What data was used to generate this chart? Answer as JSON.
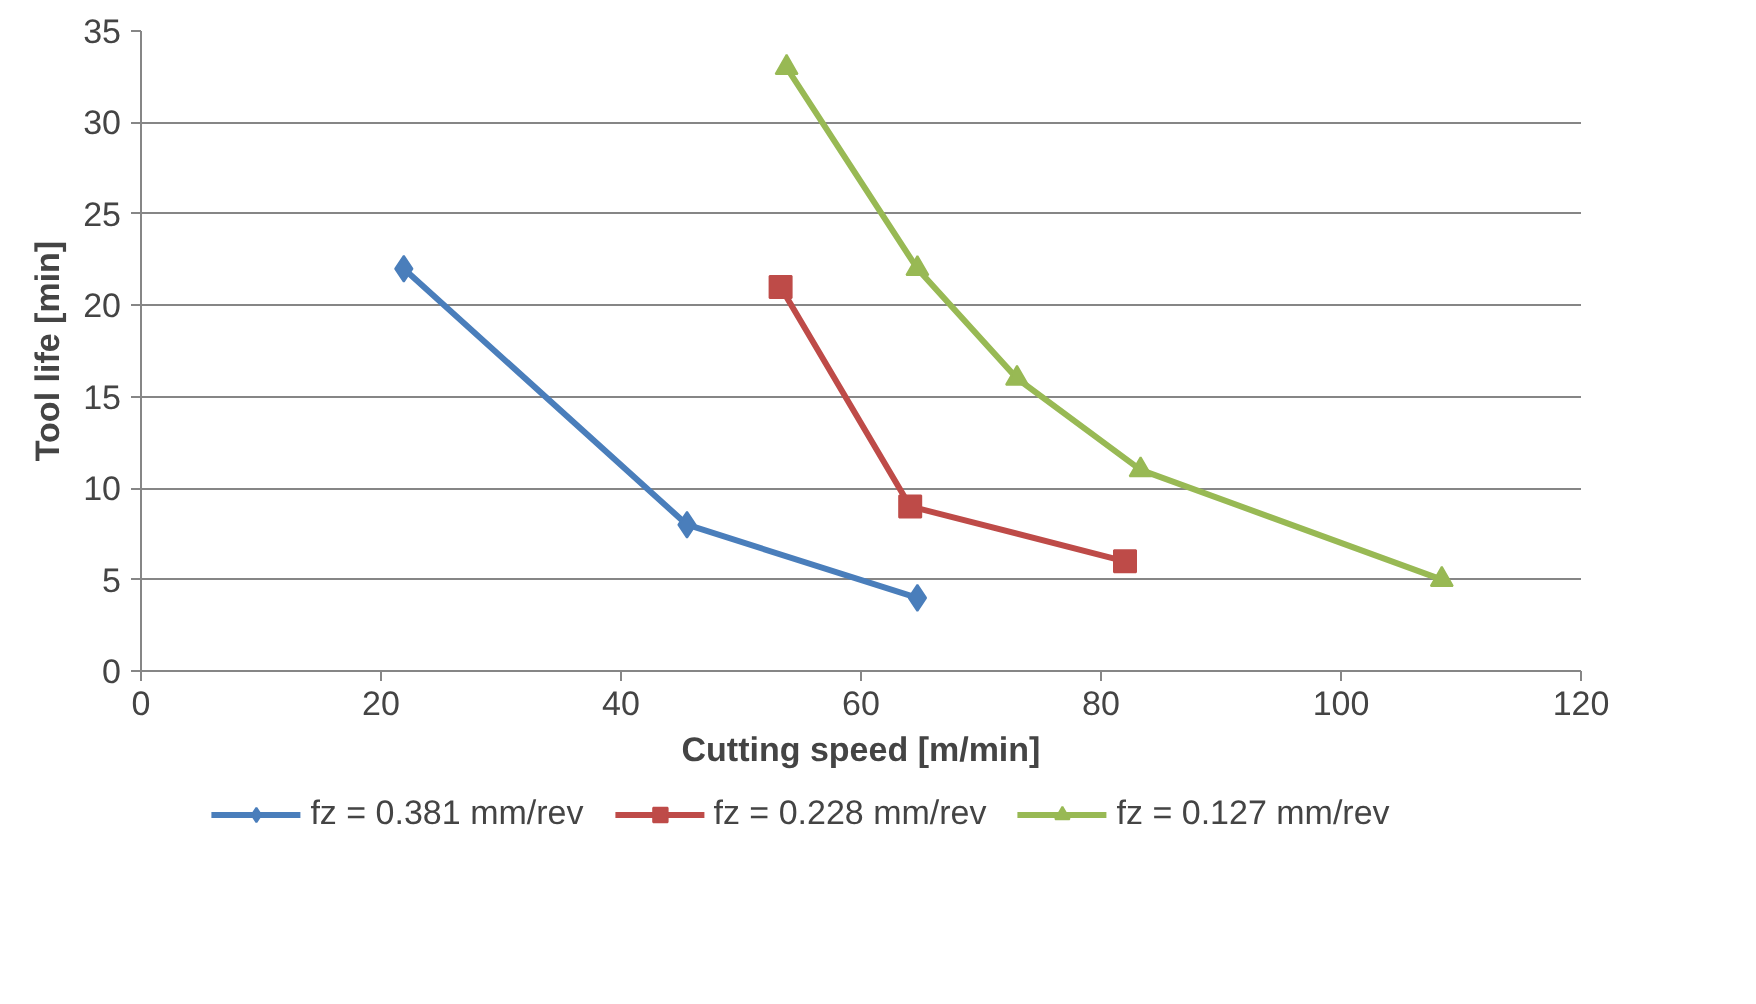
{
  "chart_data": {
    "type": "line",
    "xlabel": "Cutting speed [m/min]",
    "ylabel": "Tool life [min]",
    "xlim": [
      0,
      120
    ],
    "xticks": [
      0,
      20,
      40,
      60,
      80,
      100,
      120
    ],
    "ylim": [
      0,
      35
    ],
    "yticks": [
      0,
      5,
      10,
      15,
      20,
      25,
      30,
      35
    ],
    "grid": "y",
    "legend": "bottom",
    "series": [
      {
        "name": "fz = 0.381 mm/rev",
        "color": "#4a7ebb",
        "marker": "diamond",
        "x": [
          21.9,
          45.5,
          64.7
        ],
        "values": [
          22,
          8,
          4
        ]
      },
      {
        "name": "fz = 0.228 mm/rev",
        "color": "#be4b48",
        "marker": "square",
        "x": [
          53.3,
          64.1,
          82
        ],
        "values": [
          21,
          9,
          6
        ]
      },
      {
        "name": "fz = 0.127 mm/rev",
        "color": "#98b954",
        "marker": "triangle",
        "x": [
          53.8,
          64.7,
          73,
          83.3,
          108.4
        ],
        "values": [
          33,
          22,
          16,
          11,
          5
        ]
      }
    ]
  }
}
